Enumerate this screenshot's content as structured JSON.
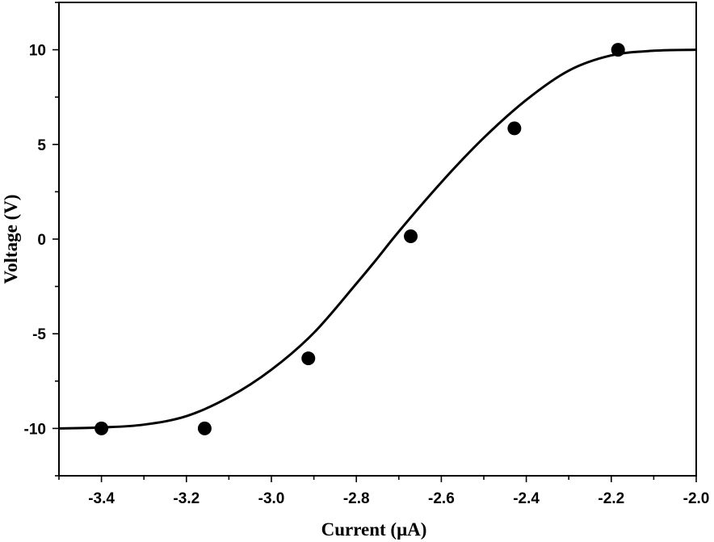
{
  "chart_data": {
    "type": "scatter",
    "xlabel": "Current (μA)",
    "ylabel": "Voltage (V)",
    "xlim": [
      -3.5,
      -2.0
    ],
    "ylim": [
      -12.5,
      12.5
    ],
    "x_ticks": [
      -3.4,
      -3.2,
      -3.0,
      -2.8,
      -2.6,
      -2.4,
      -2.2,
      -2.0
    ],
    "x_tick_labels": [
      "-3.4",
      "-3.2",
      "-3.0",
      "-2.8",
      "-2.6",
      "-2.4",
      "-2.2",
      "-2.0"
    ],
    "y_ticks": [
      -10,
      -5,
      0,
      5,
      10
    ],
    "y_tick_labels": [
      "-10",
      "-5",
      "0",
      "5",
      "10"
    ],
    "grid": false,
    "series": [
      {
        "kind": "markers",
        "x": [
          -3.4,
          -3.157,
          -2.913,
          -2.672,
          -2.428,
          -2.184
        ],
        "y": [
          -10.0,
          -10.0,
          -6.3,
          0.15,
          5.85,
          10.0
        ]
      },
      {
        "kind": "fit-line",
        "x": [
          -3.5,
          -3.4,
          -3.3,
          -3.2,
          -3.1,
          -3.0,
          -2.9,
          -2.8,
          -2.75,
          -2.7,
          -2.6,
          -2.5,
          -2.4,
          -2.3,
          -2.2,
          -2.1,
          -2.0
        ],
        "y": [
          -10.0,
          -9.95,
          -9.8,
          -9.35,
          -8.35,
          -6.9,
          -4.95,
          -2.35,
          -1.0,
          0.4,
          3.0,
          5.35,
          7.35,
          8.9,
          9.7,
          9.95,
          10.0
        ]
      }
    ]
  }
}
